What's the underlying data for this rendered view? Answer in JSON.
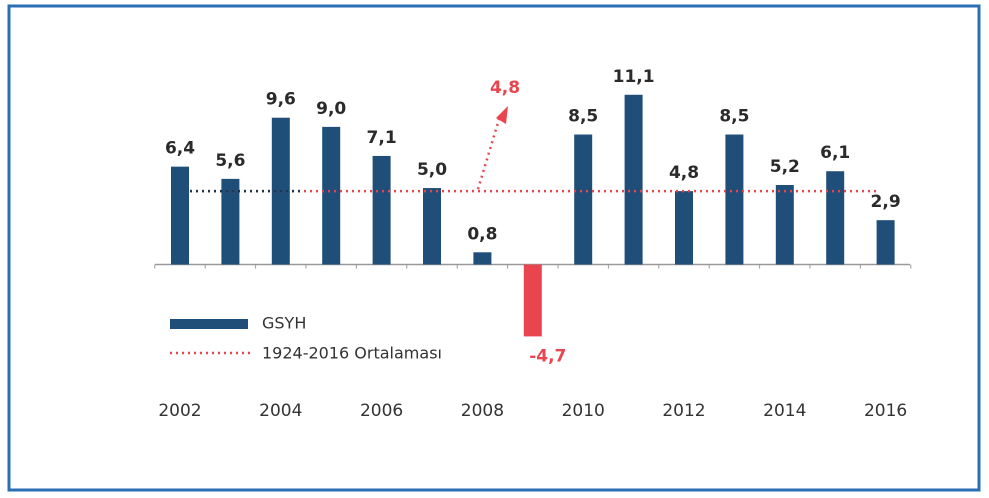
{
  "chart_data": {
    "type": "bar",
    "categories": [
      "2002",
      null,
      "2004",
      null,
      "2006",
      null,
      "2008",
      null,
      "2010",
      null,
      "2012",
      null,
      "2014",
      null,
      "2016"
    ],
    "series": [
      {
        "name": "GSYH",
        "color": "#1f4e79",
        "negative_color": "#e8454f",
        "values": [
          6.4,
          5.6,
          9.6,
          9.0,
          7.1,
          5.0,
          0.8,
          -4.7,
          8.5,
          11.1,
          4.8,
          8.5,
          5.2,
          6.1,
          2.9
        ],
        "value_labels": [
          "6,4",
          "5,6",
          "9,6",
          "9,0",
          "7,1",
          "5,0",
          "0,8",
          "-4,7",
          "8,5",
          "11,1",
          "4,8",
          "8,5",
          "5,2",
          "6,1",
          "2,9"
        ]
      }
    ],
    "average": {
      "name": "1924-2016 Ortalaması",
      "value": 4.8,
      "value_label": "4,8",
      "color": "#e8454f"
    },
    "ylim": [
      -5,
      12
    ]
  }
}
